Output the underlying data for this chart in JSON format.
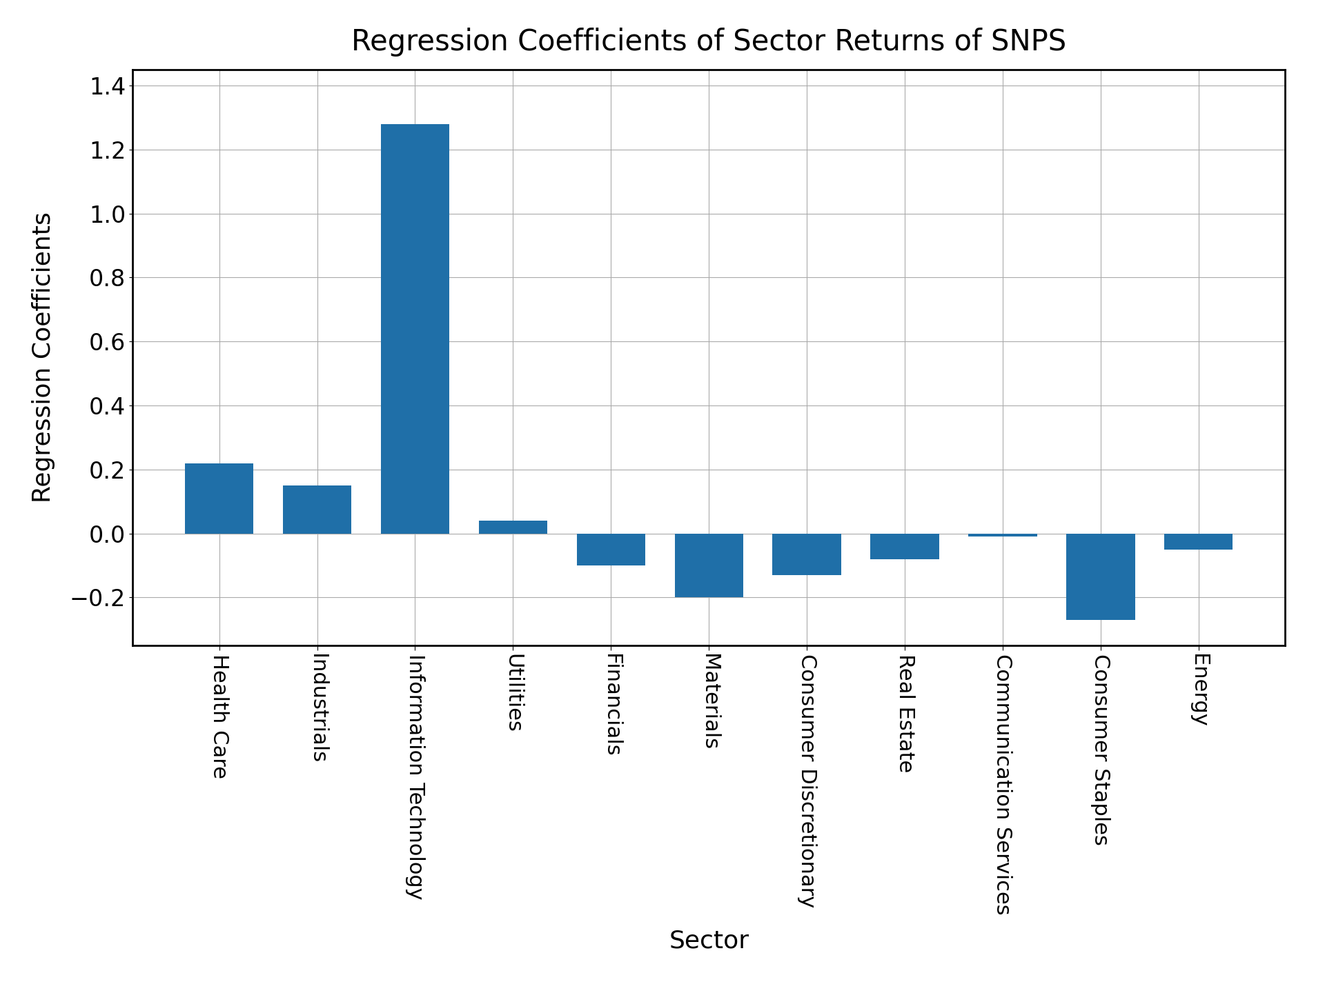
{
  "categories": [
    "Health Care",
    "Industrials",
    "Information Technology",
    "Utilities",
    "Financials",
    "Materials",
    "Consumer Discretionary",
    "Real Estate",
    "Communication Services",
    "Consumer Staples",
    "Energy"
  ],
  "values": [
    0.22,
    0.15,
    1.28,
    0.04,
    -0.1,
    -0.2,
    -0.13,
    -0.08,
    -0.01,
    -0.27,
    -0.05
  ],
  "bar_color": "#1f6fa8",
  "title": "Regression Coefficients of Sector Returns of SNPS",
  "xlabel": "Sector",
  "ylabel": "Regression Coefficients",
  "title_fontsize": 30,
  "label_fontsize": 26,
  "tick_fontsize": 24,
  "xtick_fontsize": 22,
  "background_color": "#ffffff",
  "grid_color": "#aaaaaa",
  "ylim": [
    -0.35,
    1.45
  ],
  "bar_width": 0.7
}
